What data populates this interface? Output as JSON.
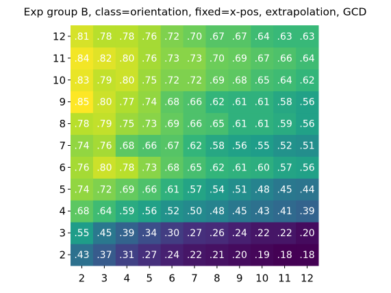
{
  "chart_data": {
    "type": "heatmap",
    "title": "Exp group B, class=orientation, fixed=x-pos, extrapolation, GCD",
    "colormap": "viridis",
    "x": [
      2,
      3,
      4,
      5,
      6,
      7,
      8,
      9,
      10,
      11,
      12
    ],
    "y": [
      2,
      3,
      4,
      5,
      6,
      7,
      8,
      9,
      10,
      11,
      12
    ],
    "values": [
      [
        0.43,
        0.37,
        0.31,
        0.27,
        0.24,
        0.22,
        0.21,
        0.2,
        0.19,
        0.18,
        0.18
      ],
      [
        0.55,
        0.45,
        0.39,
        0.34,
        0.3,
        0.27,
        0.26,
        0.24,
        0.22,
        0.22,
        0.2
      ],
      [
        0.68,
        0.64,
        0.59,
        0.56,
        0.52,
        0.5,
        0.48,
        0.45,
        0.43,
        0.41,
        0.39
      ],
      [
        0.74,
        0.72,
        0.69,
        0.66,
        0.61,
        0.57,
        0.54,
        0.51,
        0.48,
        0.45,
        0.44
      ],
      [
        0.76,
        0.8,
        0.78,
        0.73,
        0.68,
        0.65,
        0.62,
        0.61,
        0.6,
        0.57,
        0.56
      ],
      [
        0.74,
        0.76,
        0.68,
        0.66,
        0.67,
        0.62,
        0.58,
        0.56,
        0.55,
        0.52,
        0.51
      ],
      [
        0.78,
        0.79,
        0.75,
        0.73,
        0.69,
        0.66,
        0.65,
        0.61,
        0.61,
        0.59,
        0.56
      ],
      [
        0.85,
        0.8,
        0.77,
        0.74,
        0.68,
        0.66,
        0.62,
        0.61,
        0.61,
        0.58,
        0.56
      ],
      [
        0.83,
        0.79,
        0.8,
        0.75,
        0.72,
        0.72,
        0.69,
        0.68,
        0.65,
        0.64,
        0.62
      ],
      [
        0.84,
        0.82,
        0.8,
        0.76,
        0.73,
        0.73,
        0.7,
        0.69,
        0.67,
        0.66,
        0.64
      ],
      [
        0.81,
        0.78,
        0.78,
        0.76,
        0.72,
        0.7,
        0.67,
        0.67,
        0.64,
        0.63,
        0.63
      ]
    ],
    "value_labels": [
      [
        ".43",
        ".37",
        ".31",
        ".27",
        ".24",
        ".22",
        ".21",
        ".20",
        ".19",
        ".18",
        ".18"
      ],
      [
        ".55",
        ".45",
        ".39",
        ".34",
        ".30",
        ".27",
        ".26",
        ".24",
        ".22",
        ".22",
        ".20"
      ],
      [
        ".68",
        ".64",
        ".59",
        ".56",
        ".52",
        ".50",
        ".48",
        ".45",
        ".43",
        ".41",
        ".39"
      ],
      [
        ".74",
        ".72",
        ".69",
        ".66",
        ".61",
        ".57",
        ".54",
        ".51",
        ".48",
        ".45",
        ".44"
      ],
      [
        ".76",
        ".80",
        ".78",
        ".73",
        ".68",
        ".65",
        ".62",
        ".61",
        ".60",
        ".57",
        ".56"
      ],
      [
        ".74",
        ".76",
        ".68",
        ".66",
        ".67",
        ".62",
        ".58",
        ".56",
        ".55",
        ".52",
        ".51"
      ],
      [
        ".78",
        ".79",
        ".75",
        ".73",
        ".69",
        ".66",
        ".65",
        ".61",
        ".61",
        ".59",
        ".56"
      ],
      [
        ".85",
        ".80",
        ".77",
        ".74",
        ".68",
        ".66",
        ".62",
        ".61",
        ".61",
        ".58",
        ".56"
      ],
      [
        ".83",
        ".79",
        ".80",
        ".75",
        ".72",
        ".72",
        ".69",
        ".68",
        ".65",
        ".64",
        ".62"
      ],
      [
        ".84",
        ".82",
        ".80",
        ".76",
        ".73",
        ".73",
        ".70",
        ".69",
        ".67",
        ".66",
        ".64"
      ],
      [
        ".81",
        ".78",
        ".78",
        ".76",
        ".72",
        ".70",
        ".67",
        ".67",
        ".64",
        ".63",
        ".63"
      ]
    ]
  }
}
